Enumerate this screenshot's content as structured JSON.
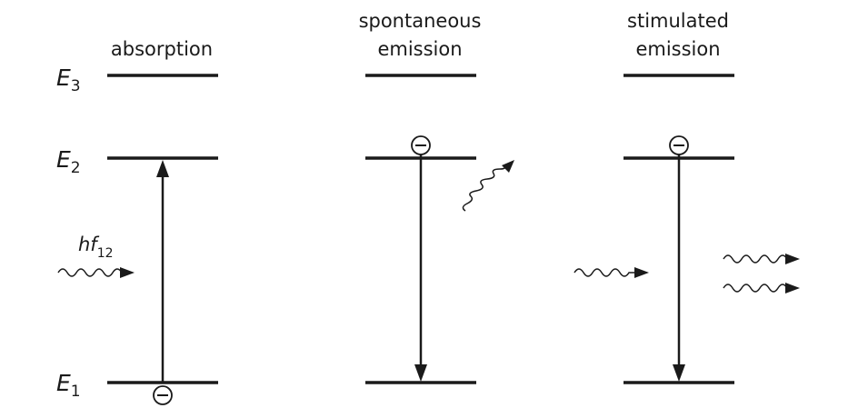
{
  "energy_levels": {
    "e3": {
      "symbol": "E",
      "subscript": "3"
    },
    "e2": {
      "symbol": "E",
      "subscript": "2"
    },
    "e1": {
      "symbol": "E",
      "subscript": "1"
    }
  },
  "panels": {
    "absorption": {
      "title_line1": "absorption",
      "title_line2": ""
    },
    "spontaneous": {
      "title_line1": "spontaneous",
      "title_line2": "emission"
    },
    "stimulated": {
      "title_line1": "stimulated",
      "title_line2": "emission"
    }
  },
  "photon_label": {
    "main": "hf",
    "subscript": "12"
  },
  "electron_symbol": "−"
}
